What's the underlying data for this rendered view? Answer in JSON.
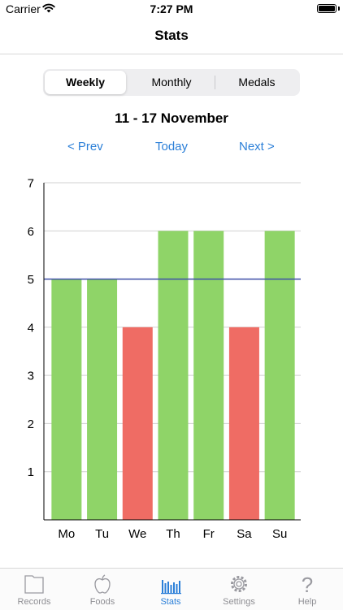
{
  "status_bar": {
    "carrier": "Carrier",
    "time": "7:27 PM"
  },
  "nav": {
    "title": "Stats"
  },
  "segments": [
    {
      "label": "Weekly",
      "active": true
    },
    {
      "label": "Monthly",
      "active": false
    },
    {
      "label": "Medals",
      "active": false
    }
  ],
  "week_range": "11 - 17 November",
  "nav_links": {
    "prev": "< Prev",
    "today": "Today",
    "next": "Next >"
  },
  "colors": {
    "accent": "#2b7fd8",
    "bar_good": "#8fd468",
    "bar_bad": "#ef6c64",
    "target_line": "#3f4fa8"
  },
  "chart_data": {
    "type": "bar",
    "categories": [
      "Mo",
      "Tu",
      "We",
      "Th",
      "Fr",
      "Sa",
      "Su"
    ],
    "values": [
      5,
      5,
      4,
      6,
      6,
      4,
      6
    ],
    "target": 5,
    "ylim": [
      0,
      7
    ],
    "yticks": [
      1,
      2,
      3,
      4,
      5,
      6,
      7
    ],
    "grid": true
  },
  "tabs": [
    {
      "label": "Records",
      "icon": "records-icon",
      "active": false
    },
    {
      "label": "Foods",
      "icon": "apple-icon",
      "active": false
    },
    {
      "label": "Stats",
      "icon": "stats-icon",
      "active": true
    },
    {
      "label": "Settings",
      "icon": "gear-icon",
      "active": false
    },
    {
      "label": "Help",
      "icon": "help-icon",
      "active": false
    }
  ]
}
